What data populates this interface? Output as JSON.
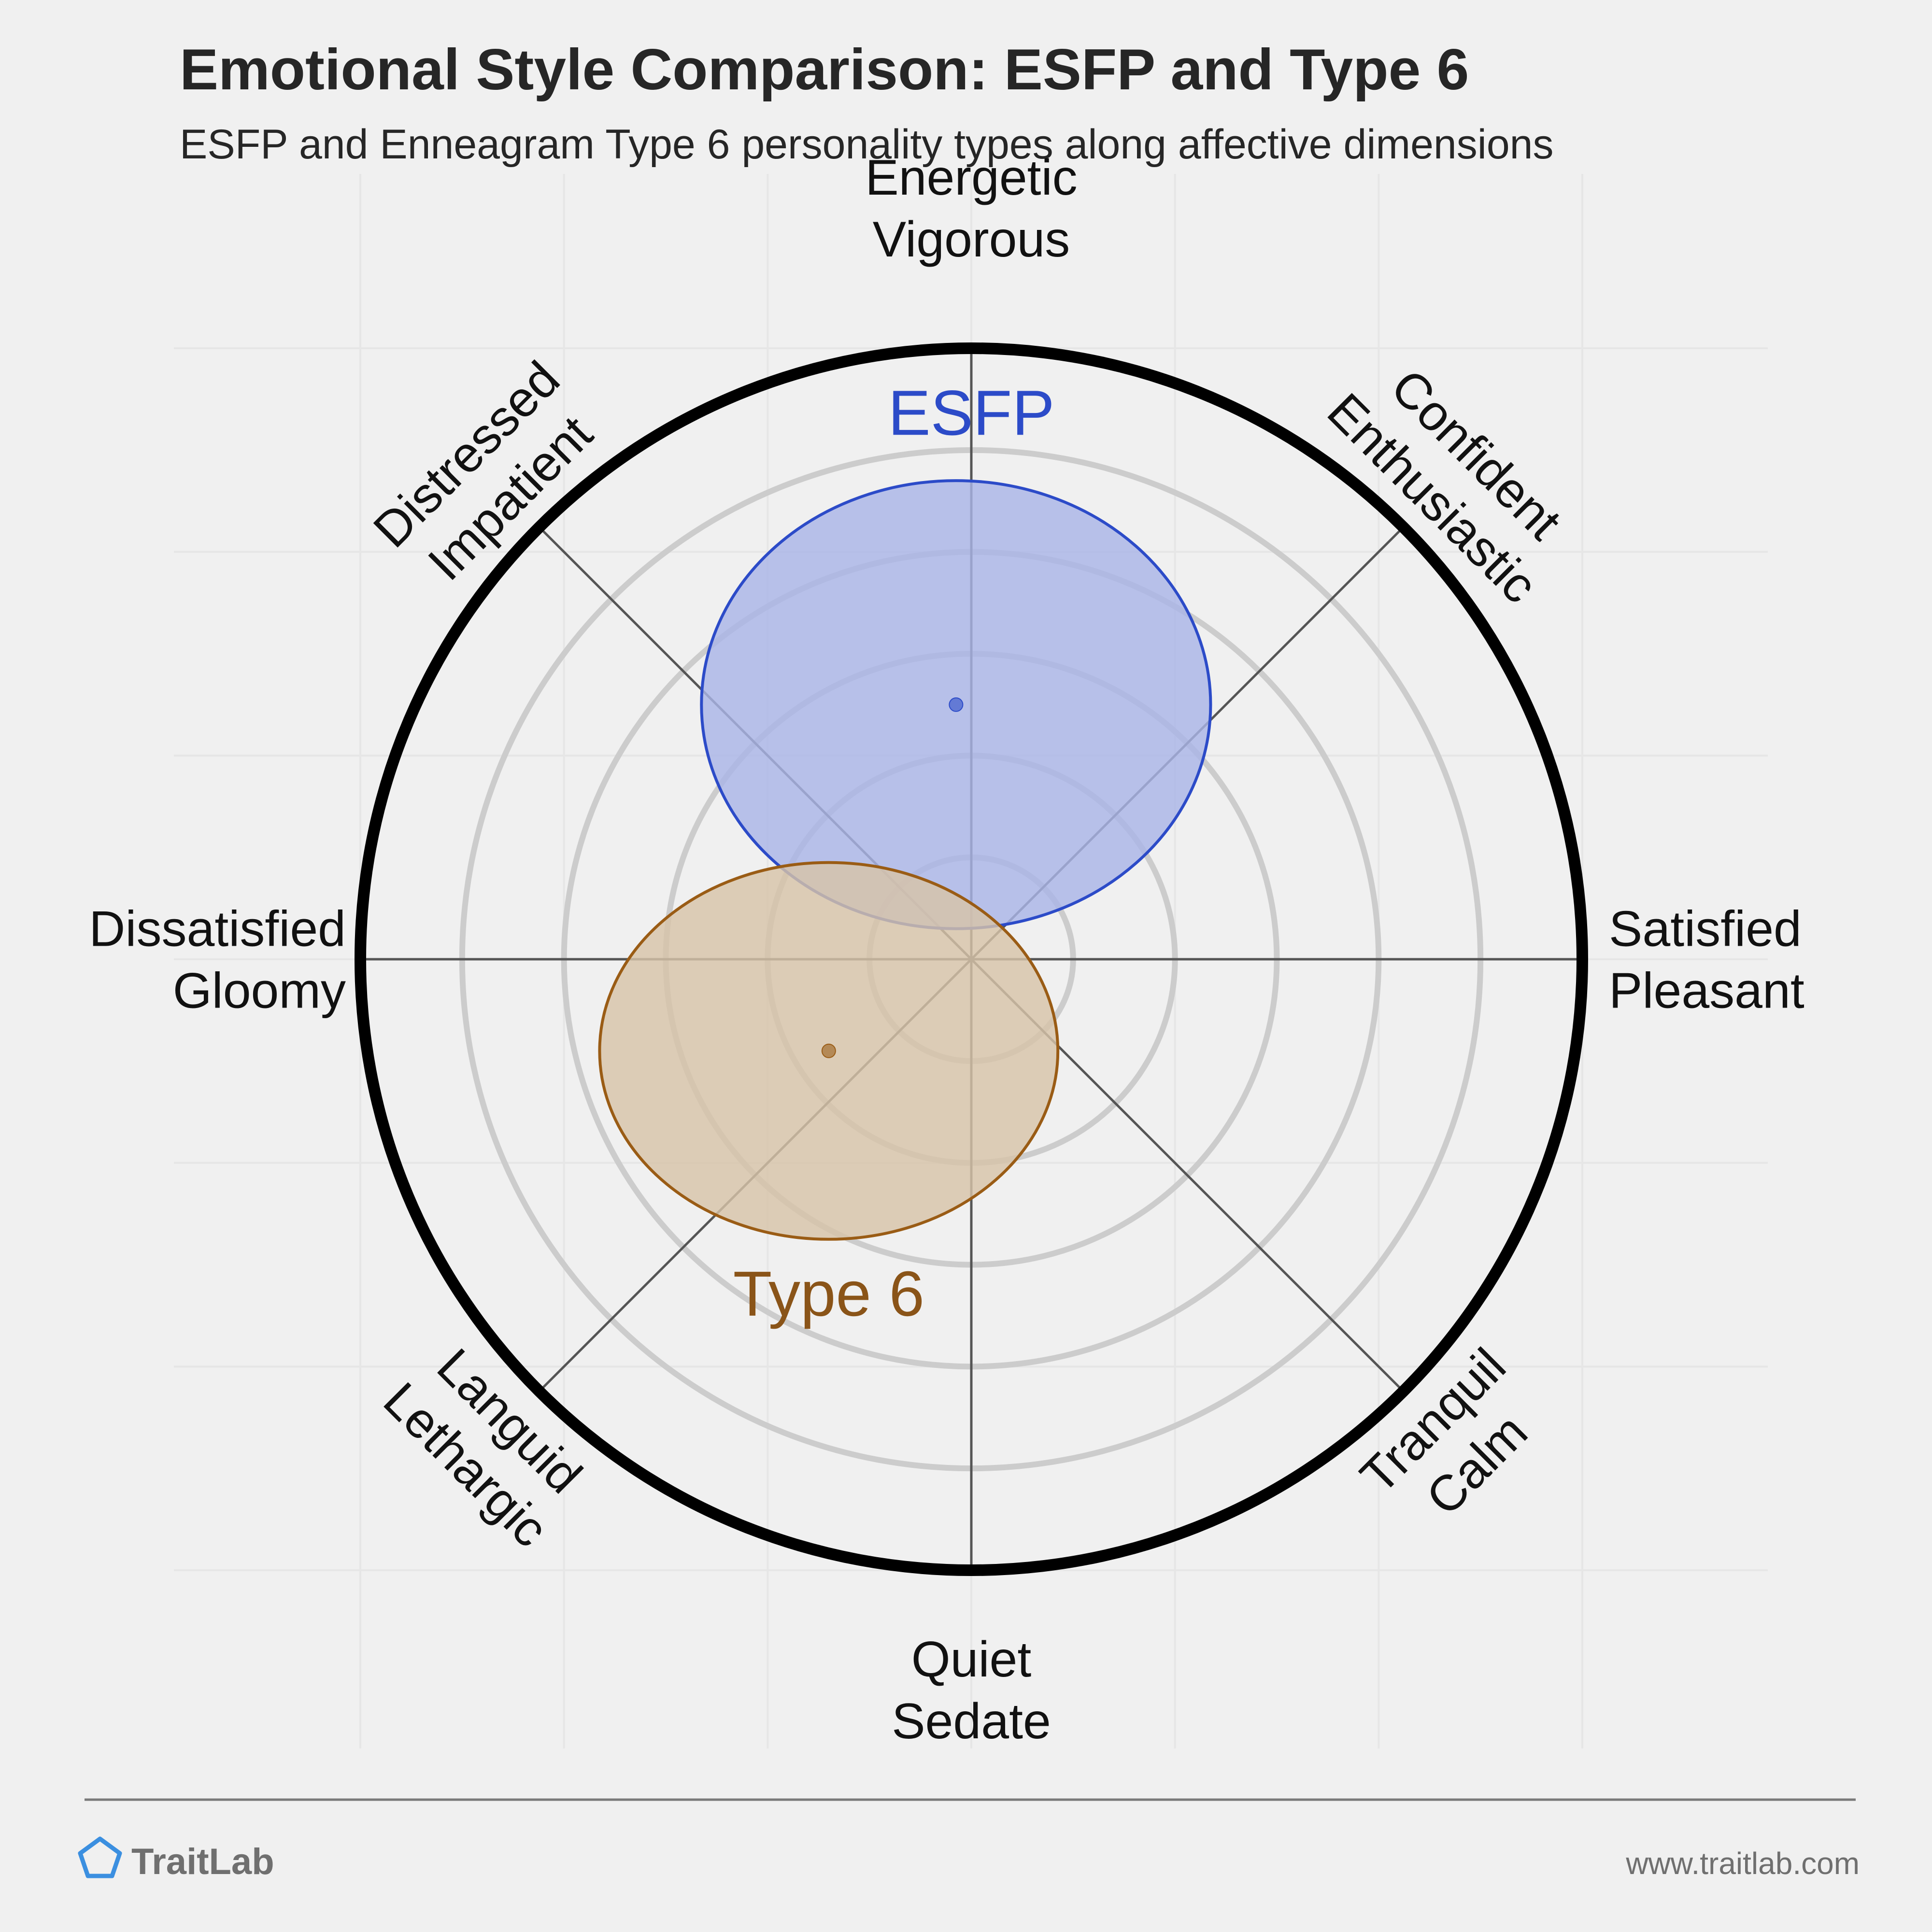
{
  "header": {
    "title": "Emotional Style Comparison: ESFP and Type 6",
    "subtitle": "ESFP and Enneagram Type 6 personality types along affective dimensions"
  },
  "footer": {
    "brand": "TraitLab",
    "brand_icon": "pentagon-logo-icon",
    "url": "www.traitlab.com"
  },
  "chart_data": {
    "type": "circumplex",
    "title": "Emotional Style Comparison: ESFP and Type 6",
    "subtitle": "ESFP and Enneagram Type 6 personality types along affective dimensions",
    "x_range": [
      -6,
      6
    ],
    "y_range": [
      -6,
      6
    ],
    "ring_count": 6,
    "grid": true,
    "axes": [
      {
        "angle_deg": 90,
        "lines": [
          "Energetic",
          "Vigorous"
        ]
      },
      {
        "angle_deg": 45,
        "lines": [
          "Confident",
          "Enthusiastic"
        ]
      },
      {
        "angle_deg": 0,
        "lines": [
          "Satisfied",
          "Pleasant"
        ]
      },
      {
        "angle_deg": -45,
        "lines": [
          "Tranquil",
          "Calm"
        ]
      },
      {
        "angle_deg": -90,
        "lines": [
          "Quiet",
          "Sedate"
        ]
      },
      {
        "angle_deg": -135,
        "lines": [
          "Languid",
          "Lethargic"
        ]
      },
      {
        "angle_deg": 180,
        "lines": [
          "Dissatisfied",
          "Gloomy"
        ]
      },
      {
        "angle_deg": 135,
        "lines": [
          "Distressed",
          "Impatient"
        ]
      }
    ],
    "series": [
      {
        "name": "ESFP",
        "center": [
          -0.15,
          2.5
        ],
        "radius": [
          2.5,
          2.2
        ],
        "fill": "#aab5e6",
        "stroke": "#2c4bc8",
        "label_color": "#2c4bc8",
        "label_pos": [
          0,
          5.15
        ]
      },
      {
        "name": "Type 6",
        "center": [
          -1.4,
          -0.9
        ],
        "radius": [
          2.25,
          1.85
        ],
        "fill": "#d7c3a8",
        "stroke": "#9a5c15",
        "label_color": "#8a5418",
        "label_pos": [
          -1.4,
          -3.5
        ]
      }
    ]
  }
}
